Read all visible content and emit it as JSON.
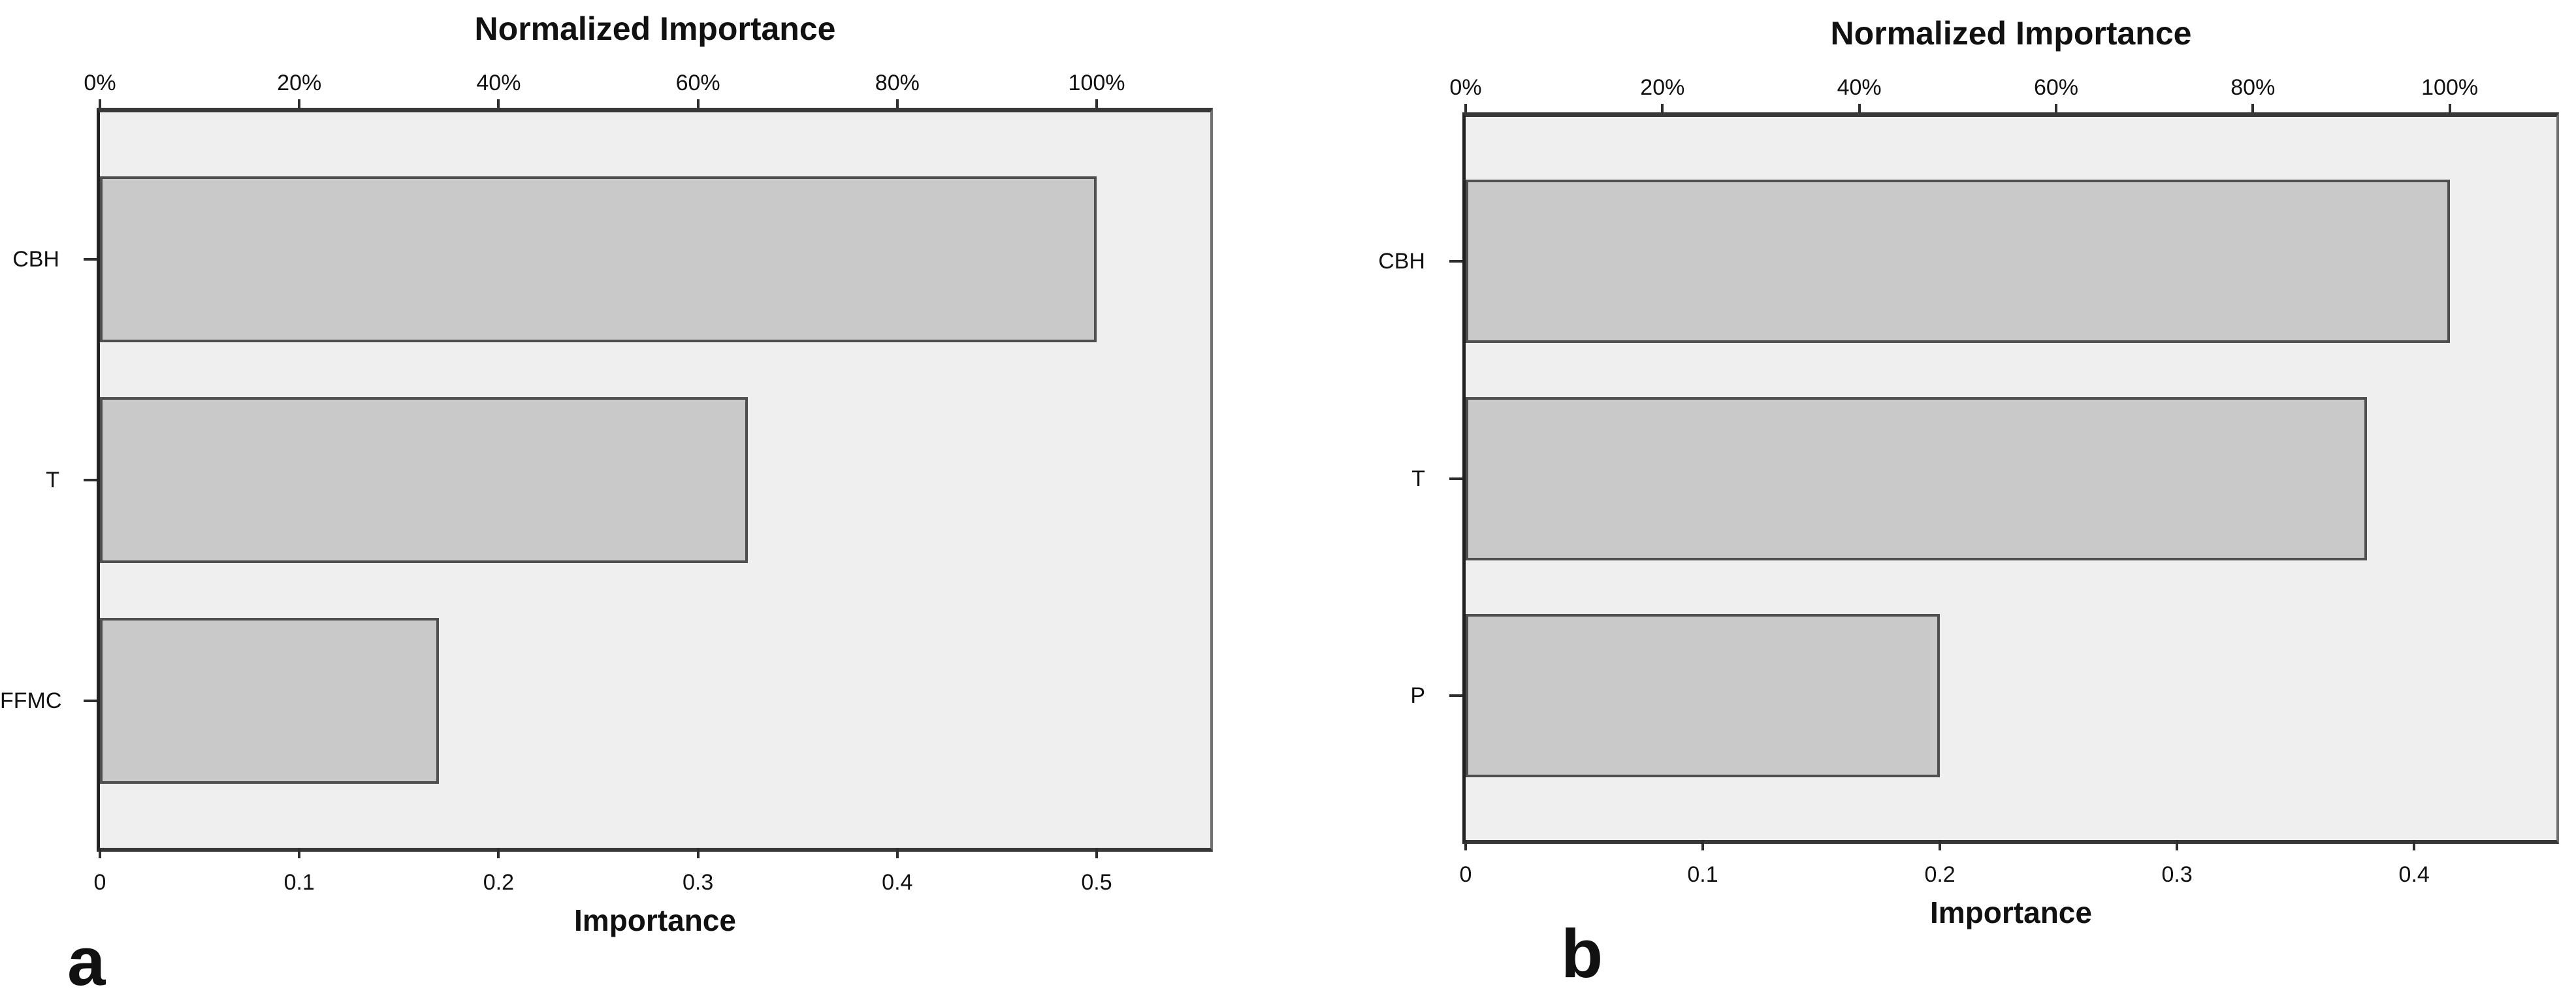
{
  "figure": {
    "background": "#ffffff"
  },
  "colors": {
    "plot_bg": "#efefef",
    "bar_fill": "#c9c9c9",
    "bar_border": "#4f4f4f",
    "axis": "#383838",
    "text": "#111111"
  },
  "chart_data": [
    {
      "id": "a",
      "type": "bar",
      "orientation": "horizontal",
      "title": "Normalized Importance",
      "xlabel": "Importance",
      "panel_label": "a",
      "categories": [
        "CBH",
        "T",
        "FFMC"
      ],
      "values": [
        0.5,
        0.325,
        0.17
      ],
      "normalized_pct": [
        100,
        65,
        34
      ],
      "xlim": [
        0,
        0.557
      ],
      "x_ticks": [
        0,
        0.1,
        0.2,
        0.3,
        0.4,
        0.5
      ],
      "x_tick_labels": [
        "0",
        "0.1",
        "0.2",
        "0.3",
        "0.4",
        "0.5"
      ],
      "top_ticks_pct": [
        0,
        20,
        40,
        60,
        80,
        100
      ],
      "top_tick_labels": [
        "0%",
        "20%",
        "40%",
        "60%",
        "80%",
        "100%"
      ],
      "grid": "off",
      "legend": "none"
    },
    {
      "id": "b",
      "type": "bar",
      "orientation": "horizontal",
      "title": "Normalized Importance",
      "xlabel": "Importance",
      "panel_label": "b",
      "categories": [
        "CBH",
        "T",
        "P"
      ],
      "values": [
        0.415,
        0.38,
        0.2
      ],
      "normalized_pct": [
        100,
        92,
        48
      ],
      "xlim": [
        0,
        0.46
      ],
      "x_ticks": [
        0,
        0.1,
        0.2,
        0.3,
        0.4
      ],
      "x_tick_labels": [
        "0",
        "0.1",
        "0.2",
        "0.3",
        "0.4"
      ],
      "top_ticks_pct": [
        0,
        20,
        40,
        60,
        80,
        100
      ],
      "top_tick_labels": [
        "0%",
        "20%",
        "40%",
        "60%",
        "80%",
        "100%"
      ],
      "grid": "off",
      "legend": "none"
    }
  ]
}
